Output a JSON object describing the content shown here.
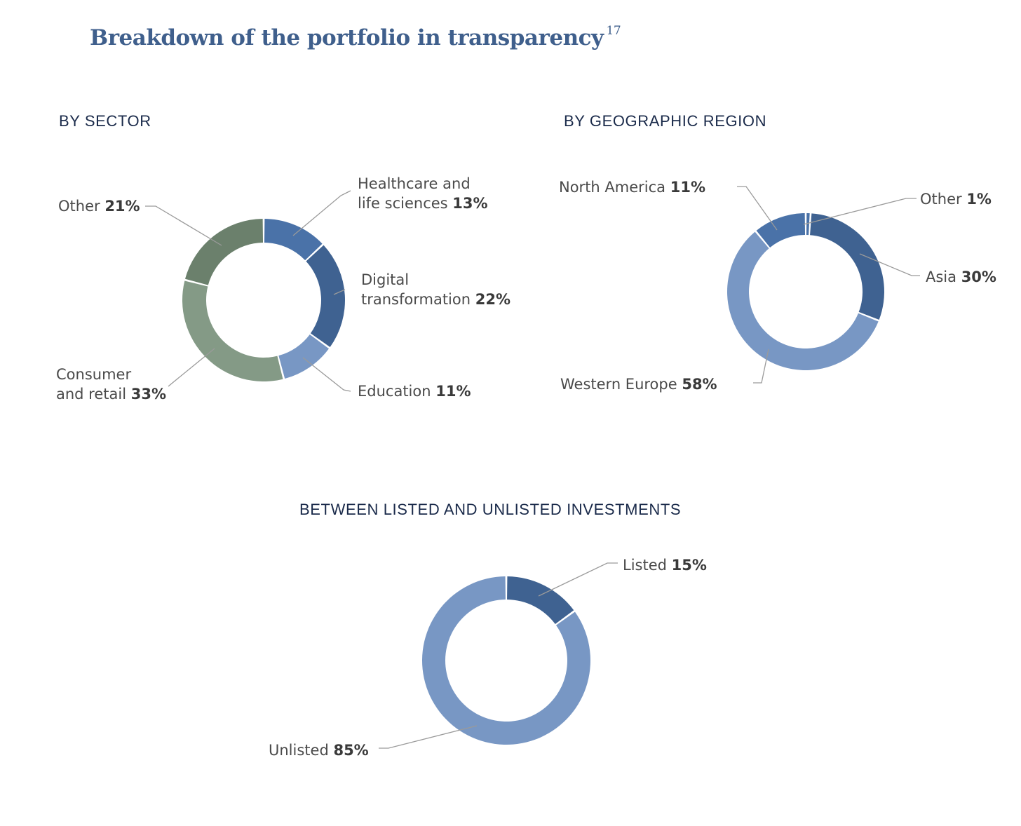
{
  "title": {
    "text": "Breakdown of the portfolio in transparency",
    "footnote": "17"
  },
  "chart_data": [
    {
      "type": "pie",
      "title": "BY SECTOR",
      "slices": [
        {
          "label": "Healthcare and life sciences",
          "label_lines": [
            "Healthcare and",
            "life sciences"
          ],
          "value": 13,
          "value_label": "13%",
          "color": "#4a72a8"
        },
        {
          "label": "Digital transformation",
          "label_lines": [
            "Digital",
            "transformation"
          ],
          "value": 22,
          "value_label": "22%",
          "color": "#3f6291"
        },
        {
          "label": "Education",
          "label_lines": [
            "Education"
          ],
          "value": 11,
          "value_label": "11%",
          "color": "#7897c4"
        },
        {
          "label": "Consumer and retail",
          "label_lines": [
            "Consumer",
            "and retail"
          ],
          "value": 33,
          "value_label": "33%",
          "color": "#849a86"
        },
        {
          "label": "Other",
          "label_lines": [
            "Other"
          ],
          "value": 21,
          "value_label": "21%",
          "color": "#6b806c"
        }
      ]
    },
    {
      "type": "pie",
      "title": "BY GEOGRAPHIC REGION",
      "slices": [
        {
          "label": "Other",
          "label_lines": [
            "Other"
          ],
          "value": 1,
          "value_label": "1%",
          "color": "#4a72a8"
        },
        {
          "label": "Asia",
          "label_lines": [
            "Asia"
          ],
          "value": 30,
          "value_label": "30%",
          "color": "#3f6291"
        },
        {
          "label": "Western Europe",
          "label_lines": [
            "Western Europe"
          ],
          "value": 58,
          "value_label": "58%",
          "color": "#7897c4"
        },
        {
          "label": "North America",
          "label_lines": [
            "North America"
          ],
          "value": 11,
          "value_label": "11%",
          "color": "#4a72a8"
        }
      ]
    },
    {
      "type": "pie",
      "title": "BETWEEN LISTED AND UNLISTED INVESTMENTS",
      "slices": [
        {
          "label": "Listed",
          "label_lines": [
            "Listed"
          ],
          "value": 15,
          "value_label": "15%",
          "color": "#3f6291"
        },
        {
          "label": "Unlisted",
          "label_lines": [
            "Unlisted"
          ],
          "value": 85,
          "value_label": "85%",
          "color": "#7897c4"
        }
      ]
    }
  ]
}
